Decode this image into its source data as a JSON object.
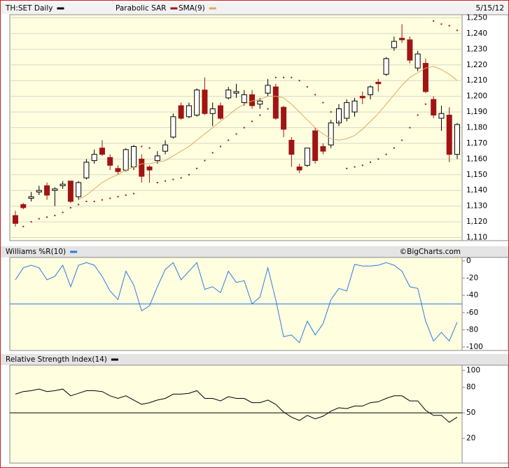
{
  "chart_data": [
    {
      "type": "candlestick",
      "name": "TH:SET Daily",
      "name_color": "#000000",
      "date": "5/15/12",
      "open": [
        1124,
        1131,
        1135,
        1139,
        1143,
        1140,
        1143,
        1146,
        1136,
        1148,
        1159,
        1167,
        1161,
        1154,
        1153,
        1155,
        1160,
        1155,
        1159,
        1165,
        1174,
        1194,
        1187,
        1188,
        1204,
        1189,
        1194,
        1199,
        1202,
        1196,
        1201,
        1195,
        1202,
        1206,
        1193,
        1172,
        1155,
        1156,
        1178,
        1168,
        1169,
        1183,
        1186,
        1190,
        1200,
        1201,
        1209,
        1214,
        1231,
        1237,
        1236,
        1218,
        1221,
        1198,
        1186,
        1188,
        1163
      ],
      "high": [
        1127,
        1132,
        1139,
        1143,
        1145,
        1142,
        1146,
        1146,
        1146,
        1160,
        1166,
        1172,
        1163,
        1156,
        1167,
        1169,
        1163,
        1156,
        1165,
        1172,
        1189,
        1196,
        1196,
        1205,
        1212,
        1196,
        1196,
        1206,
        1208,
        1204,
        1204,
        1199,
        1211,
        1208,
        1194,
        1174,
        1157,
        1167,
        1180,
        1170,
        1185,
        1195,
        1198,
        1199,
        1203,
        1207,
        1211,
        1225,
        1238,
        1246,
        1238,
        1229,
        1224,
        1200,
        1194,
        1193,
        1183
      ],
      "low": [
        1117,
        1128,
        1133,
        1137,
        1134,
        1130,
        1141,
        1132,
        1134,
        1147,
        1157,
        1162,
        1153,
        1150,
        1152,
        1153,
        1145,
        1145,
        1157,
        1163,
        1173,
        1185,
        1186,
        1187,
        1188,
        1181,
        1185,
        1198,
        1199,
        1194,
        1192,
        1192,
        1200,
        1185,
        1174,
        1155,
        1151,
        1155,
        1157,
        1163,
        1167,
        1181,
        1184,
        1187,
        1195,
        1198,
        1203,
        1213,
        1229,
        1234,
        1221,
        1216,
        1202,
        1186,
        1178,
        1158,
        1160
      ],
      "close": [
        1119,
        1129,
        1136,
        1140,
        1137,
        1141,
        1144,
        1133,
        1145,
        1158,
        1163,
        1163,
        1156,
        1152,
        1166,
        1168,
        1149,
        1153,
        1162,
        1169,
        1187,
        1186,
        1194,
        1204,
        1189,
        1192,
        1186,
        1204,
        1203,
        1201,
        1194,
        1197,
        1207,
        1186,
        1179,
        1163,
        1153,
        1167,
        1159,
        1165,
        1183,
        1192,
        1196,
        1197,
        1199,
        1206,
        1208,
        1224,
        1235,
        1236,
        1223,
        1227,
        1203,
        1188,
        1189,
        1163,
        1182
      ],
      "up_color": "#ffffff",
      "down_color": "#a01414",
      "overlays": [
        {
          "type": "scatter",
          "name": "Parabolic SAR",
          "color": "#a01414",
          "values": [
            null,
            1117,
            1120,
            1122,
            1123,
            1124,
            1126,
            1129,
            1131,
            1133,
            1133,
            1134,
            1135,
            1136,
            1137,
            1138,
            1168,
            1167,
            1145,
            1146,
            1147,
            1148,
            1150,
            1154,
            1159,
            1164,
            1168,
            1172,
            1176,
            1180,
            1184,
            1188,
            1192,
            1212,
            1212,
            1212,
            1210,
            1206,
            1201,
            1196,
            1190,
            1184,
            1154,
            1155,
            1156,
            1158,
            1160,
            1163,
            1167,
            1172,
            1180,
            1188,
            1195,
            1248,
            1246,
            1245,
            1242
          ]
        },
        {
          "type": "line",
          "name": "SMA(9)",
          "color": "#e0a860",
          "values": [
            null,
            null,
            null,
            null,
            null,
            null,
            null,
            null,
            1134,
            1137,
            1141,
            1145,
            1148,
            1150,
            1153,
            1155,
            1157,
            1157,
            1158,
            1159,
            1162,
            1165,
            1168,
            1172,
            1176,
            1180,
            1184,
            1188,
            1192,
            1195,
            1197,
            1198,
            1200,
            1200,
            1199,
            1195,
            1190,
            1185,
            1180,
            1176,
            1173,
            1172,
            1173,
            1175,
            1179,
            1184,
            1189,
            1195,
            1201,
            1207,
            1212,
            1215,
            1218,
            1219,
            1217,
            1214,
            1210
          ]
        }
      ],
      "ylim": [
        1108,
        1252
      ],
      "yticks": [
        {
          "value": 1110,
          "label": "1,110"
        },
        {
          "value": 1120,
          "label": "1,120"
        },
        {
          "value": 1130,
          "label": "1,130"
        },
        {
          "value": 1140,
          "label": "1,140"
        },
        {
          "value": 1150,
          "label": "1,150"
        },
        {
          "value": 1160,
          "label": "1,160"
        },
        {
          "value": 1170,
          "label": "1,170"
        },
        {
          "value": 1180,
          "label": "1,180"
        },
        {
          "value": 1190,
          "label": "1,190"
        },
        {
          "value": 1200,
          "label": "1,200"
        },
        {
          "value": 1210,
          "label": "1,210"
        },
        {
          "value": 1220,
          "label": "1,220"
        },
        {
          "value": 1230,
          "label": "1,230"
        },
        {
          "value": 1240,
          "label": "1,240"
        },
        {
          "value": 1250,
          "label": "1,250"
        }
      ],
      "grid": true
    },
    {
      "type": "line",
      "name": "Williams %R(10)",
      "color": "#2a7ae2",
      "credit": "©BigCharts.com",
      "values": [
        -22,
        -8,
        -5,
        -8,
        -22,
        -18,
        -5,
        -30,
        -5,
        -2,
        -5,
        -18,
        -35,
        -45,
        -12,
        -28,
        -58,
        -52,
        -30,
        -10,
        -2,
        -22,
        -12,
        -2,
        -33,
        -30,
        -37,
        -12,
        -25,
        -23,
        -50,
        -42,
        -8,
        -45,
        -88,
        -86,
        -95,
        -70,
        -86,
        -73,
        -45,
        -32,
        -35,
        -4,
        -6,
        -6,
        -5,
        -2,
        -5,
        -12,
        -30,
        -32,
        -70,
        -93,
        -83,
        -93,
        -71
      ],
      "ylim": [
        -104,
        4
      ],
      "yticks": [
        0,
        -20,
        -40,
        -60,
        -80,
        -100
      ],
      "reference_line": -50
    },
    {
      "type": "line",
      "name": "Relative Strength Index(14)",
      "color": "#000000",
      "values": [
        72,
        75,
        76,
        78,
        75,
        76,
        78,
        70,
        73,
        76,
        76,
        75,
        70,
        67,
        70,
        65,
        60,
        62,
        65,
        67,
        72,
        72,
        73,
        76,
        67,
        67,
        64,
        69,
        67,
        67,
        62,
        62,
        65,
        60,
        51,
        45,
        41,
        47,
        43,
        46,
        52,
        56,
        55,
        58,
        58,
        62,
        63,
        67,
        70,
        70,
        64,
        64,
        53,
        47,
        47,
        39,
        45
      ],
      "ylim": [
        -9,
        106
      ],
      "yticks": [
        100,
        80,
        50,
        20
      ],
      "reference_line": 50
    }
  ]
}
